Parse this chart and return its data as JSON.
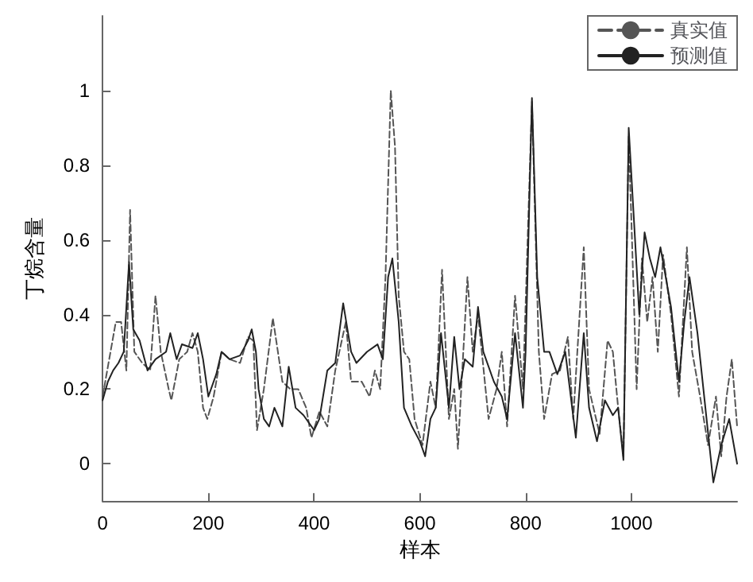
{
  "chart_data": {
    "type": "line",
    "xlabel": "样本",
    "ylabel": "丁烷含量",
    "xlim": [
      0,
      1200
    ],
    "xticks": [
      0,
      200,
      400,
      600,
      800,
      1000
    ],
    "ylim": [
      -0.1,
      1.2
    ],
    "yticks": [
      0,
      0.2,
      0.4,
      0.6,
      0.8,
      1
    ],
    "grid": false,
    "legend": "top right",
    "marker": "none",
    "series": [
      {
        "name": "真实值",
        "color": "#555555",
        "line_style": "dashed",
        "x": [
          0,
          15,
          25,
          35,
          45,
          52,
          60,
          75,
          90,
          100,
          110,
          125,
          130,
          145,
          160,
          170,
          180,
          190,
          198,
          210,
          225,
          240,
          260,
          275,
          285,
          292,
          305,
          322,
          340,
          355,
          370,
          385,
          395,
          410,
          425,
          440,
          460,
          470,
          490,
          505,
          515,
          525,
          535,
          545,
          553,
          560,
          570,
          580,
          590,
          605,
          620,
          630,
          642,
          655,
          665,
          672,
          690,
          700,
          710,
          730,
          745,
          755,
          765,
          780,
          795,
          812,
          825,
          835,
          850,
          865,
          880,
          890,
          910,
          920,
          940,
          955,
          965,
          975,
          985,
          995,
          1010,
          1020,
          1030,
          1040,
          1050,
          1060,
          1075,
          1090,
          1105,
          1115,
          1130,
          1145,
          1160,
          1170,
          1180,
          1190,
          1200
        ],
        "values": [
          0.18,
          0.3,
          0.38,
          0.38,
          0.25,
          0.68,
          0.3,
          0.27,
          0.25,
          0.45,
          0.3,
          0.2,
          0.17,
          0.28,
          0.3,
          0.35,
          0.3,
          0.15,
          0.12,
          0.18,
          0.3,
          0.28,
          0.27,
          0.34,
          0.33,
          0.09,
          0.2,
          0.39,
          0.22,
          0.2,
          0.2,
          0.15,
          0.07,
          0.14,
          0.1,
          0.25,
          0.38,
          0.22,
          0.22,
          0.18,
          0.25,
          0.2,
          0.5,
          1.0,
          0.85,
          0.45,
          0.3,
          0.28,
          0.12,
          0.05,
          0.22,
          0.15,
          0.52,
          0.12,
          0.2,
          0.04,
          0.5,
          0.3,
          0.4,
          0.12,
          0.2,
          0.3,
          0.1,
          0.45,
          0.2,
          0.97,
          0.3,
          0.12,
          0.24,
          0.25,
          0.34,
          0.12,
          0.58,
          0.2,
          0.08,
          0.33,
          0.3,
          0.15,
          0.02,
          0.88,
          0.2,
          0.55,
          0.38,
          0.5,
          0.3,
          0.56,
          0.4,
          0.18,
          0.58,
          0.3,
          0.18,
          0.05,
          0.18,
          0.02,
          0.18,
          0.28,
          0.1
        ]
      },
      {
        "name": "预测值",
        "color": "#222222",
        "line_style": "solid",
        "x": [
          0,
          10,
          20,
          30,
          40,
          50,
          58,
          70,
          85,
          100,
          120,
          128,
          140,
          150,
          170,
          180,
          190,
          200,
          215,
          225,
          240,
          260,
          275,
          282,
          290,
          295,
          305,
          315,
          325,
          340,
          352,
          365,
          380,
          400,
          410,
          425,
          440,
          455,
          470,
          480,
          500,
          520,
          530,
          540,
          548,
          560,
          570,
          585,
          600,
          610,
          620,
          630,
          640,
          655,
          665,
          675,
          685,
          700,
          710,
          720,
          740,
          755,
          765,
          780,
          795,
          800,
          812,
          822,
          835,
          845,
          860,
          875,
          895,
          910,
          920,
          935,
          950,
          965,
          975,
          985,
          995,
          1015,
          1025,
          1035,
          1045,
          1055,
          1075,
          1090,
          1100,
          1110,
          1125,
          1140,
          1155,
          1170,
          1185,
          1200
        ],
        "values": [
          0.17,
          0.22,
          0.25,
          0.27,
          0.3,
          0.54,
          0.36,
          0.33,
          0.25,
          0.28,
          0.3,
          0.35,
          0.28,
          0.32,
          0.31,
          0.35,
          0.28,
          0.18,
          0.24,
          0.3,
          0.28,
          0.29,
          0.33,
          0.36,
          0.3,
          0.2,
          0.12,
          0.1,
          0.15,
          0.1,
          0.26,
          0.15,
          0.13,
          0.09,
          0.12,
          0.25,
          0.27,
          0.43,
          0.3,
          0.27,
          0.3,
          0.32,
          0.28,
          0.5,
          0.55,
          0.38,
          0.15,
          0.1,
          0.06,
          0.02,
          0.12,
          0.15,
          0.35,
          0.15,
          0.34,
          0.2,
          0.28,
          0.26,
          0.42,
          0.3,
          0.22,
          0.18,
          0.12,
          0.35,
          0.15,
          0.3,
          0.98,
          0.5,
          0.3,
          0.3,
          0.24,
          0.3,
          0.07,
          0.35,
          0.15,
          0.06,
          0.17,
          0.13,
          0.15,
          0.01,
          0.9,
          0.4,
          0.62,
          0.55,
          0.5,
          0.58,
          0.42,
          0.22,
          0.38,
          0.5,
          0.35,
          0.15,
          -0.05,
          0.05,
          0.12,
          0.0
        ]
      }
    ]
  }
}
